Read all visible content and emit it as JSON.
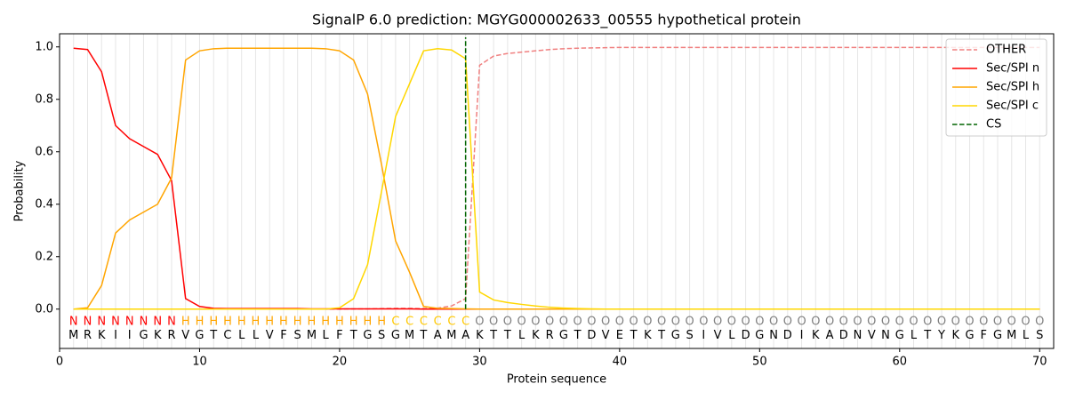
{
  "chart_data": {
    "type": "line",
    "title": "SignalP 6.0 prediction: MGYG000002633_00555 hypothetical protein",
    "xlabel": "Protein sequence",
    "ylabel": "Probability",
    "x": [
      1,
      2,
      3,
      4,
      5,
      6,
      7,
      8,
      9,
      10,
      11,
      12,
      13,
      14,
      15,
      16,
      17,
      18,
      19,
      20,
      21,
      22,
      23,
      24,
      25,
      26,
      27,
      28,
      29,
      30,
      31,
      32,
      33,
      34,
      35,
      36,
      37,
      38,
      39,
      40,
      41,
      42,
      43,
      44,
      45,
      46,
      47,
      48,
      49,
      50,
      51,
      52,
      53,
      54,
      55,
      56,
      57,
      58,
      59,
      60,
      61,
      62,
      63,
      64,
      65,
      66,
      67,
      68,
      69,
      70
    ],
    "sequence": [
      "M",
      "R",
      "K",
      "I",
      "I",
      "G",
      "K",
      "R",
      "V",
      "G",
      "T",
      "C",
      "L",
      "L",
      "V",
      "F",
      "S",
      "M",
      "L",
      "F",
      "T",
      "G",
      "S",
      "G",
      "M",
      "T",
      "A",
      "M",
      "A",
      "K",
      "T",
      "T",
      "L",
      "K",
      "R",
      "G",
      "T",
      "D",
      "V",
      "E",
      "T",
      "K",
      "T",
      "G",
      "S",
      "I",
      "V",
      "L",
      "D",
      "G",
      "N",
      "D",
      "I",
      "K",
      "A",
      "D",
      "N",
      "V",
      "N",
      "G",
      "L",
      "T",
      "Y",
      "K",
      "G",
      "F",
      "G",
      "M",
      "L",
      "S"
    ],
    "labels": [
      "N",
      "N",
      "N",
      "N",
      "N",
      "N",
      "N",
      "N",
      "H",
      "H",
      "H",
      "H",
      "H",
      "H",
      "H",
      "H",
      "H",
      "H",
      "H",
      "H",
      "H",
      "H",
      "H",
      "C",
      "C",
      "C",
      "C",
      "C",
      "C",
      "O",
      "O",
      "O",
      "O",
      "O",
      "O",
      "O",
      "O",
      "O",
      "O",
      "O",
      "O",
      "O",
      "O",
      "O",
      "O",
      "O",
      "O",
      "O",
      "O",
      "O",
      "O",
      "O",
      "O",
      "O",
      "O",
      "O",
      "O",
      "O",
      "O",
      "O",
      "O",
      "O",
      "O",
      "O",
      "O",
      "O",
      "O",
      "O",
      "O",
      "O"
    ],
    "label_colors": {
      "N": "#ff0000",
      "H": "#ffa500",
      "C": "#ffc800",
      "O": "#808080"
    },
    "series": [
      {
        "name": "OTHER",
        "color": "#f08080",
        "dash": true,
        "values": [
          0,
          0,
          0,
          0,
          0,
          0,
          0,
          0,
          0,
          0,
          0,
          0,
          0,
          0,
          0,
          0,
          0,
          0,
          0,
          0,
          0.001,
          0.001,
          0.002,
          0.003,
          0.003,
          0.002,
          0.004,
          0.012,
          0.04,
          0.93,
          0.965,
          0.975,
          0.98,
          0.985,
          0.99,
          0.993,
          0.995,
          0.996,
          0.997,
          0.998,
          0.998,
          0.998,
          0.998,
          0.998,
          0.998,
          0.998,
          0.998,
          0.998,
          0.998,
          0.998,
          0.998,
          0.998,
          0.998,
          0.998,
          0.998,
          0.998,
          0.998,
          0.998,
          0.998,
          0.998,
          0.998,
          0.998,
          0.998,
          0.998,
          0.998,
          0.998,
          0.998,
          0.998,
          0.998,
          0.998
        ]
      },
      {
        "name": "Sec/SPI n",
        "color": "#ff0000",
        "dash": false,
        "values": [
          0.995,
          0.99,
          0.905,
          0.7,
          0.65,
          0.62,
          0.59,
          0.49,
          0.04,
          0.01,
          0.003,
          0.002,
          0.002,
          0.002,
          0.002,
          0.002,
          0.002,
          0.001,
          0.001,
          0.001,
          0.001,
          0.001,
          0.001,
          0.001,
          0.001,
          0,
          0,
          0,
          0,
          0,
          0,
          0,
          0,
          0,
          0,
          0,
          0,
          0,
          0,
          0,
          0,
          0,
          0,
          0,
          0,
          0,
          0,
          0,
          0,
          0,
          0,
          0,
          0,
          0,
          0,
          0,
          0,
          0,
          0,
          0,
          0,
          0,
          0,
          0,
          0,
          0,
          0,
          0,
          0,
          0
        ]
      },
      {
        "name": "Sec/SPI h",
        "color": "#ffa500",
        "dash": false,
        "values": [
          0,
          0.005,
          0.09,
          0.29,
          0.34,
          0.37,
          0.4,
          0.5,
          0.95,
          0.985,
          0.993,
          0.995,
          0.995,
          0.995,
          0.995,
          0.995,
          0.995,
          0.995,
          0.993,
          0.985,
          0.95,
          0.82,
          0.55,
          0.26,
          0.14,
          0.01,
          0.003,
          0.002,
          0.001,
          0,
          0,
          0,
          0,
          0,
          0,
          0,
          0,
          0,
          0,
          0,
          0,
          0,
          0,
          0,
          0,
          0,
          0,
          0,
          0,
          0,
          0,
          0,
          0,
          0,
          0,
          0,
          0,
          0,
          0,
          0,
          0,
          0,
          0,
          0,
          0,
          0,
          0,
          0,
          0,
          0
        ]
      },
      {
        "name": "Sec/SPI c",
        "color": "#ffd700",
        "dash": false,
        "values": [
          0,
          0,
          0,
          0,
          0,
          0,
          0,
          0,
          0,
          0,
          0,
          0,
          0,
          0,
          0,
          0,
          0,
          0,
          0,
          0.005,
          0.04,
          0.17,
          0.45,
          0.735,
          0.86,
          0.985,
          0.993,
          0.988,
          0.955,
          0.065,
          0.035,
          0.025,
          0.018,
          0.012,
          0.007,
          0.004,
          0.002,
          0.001,
          0,
          0,
          0,
          0,
          0,
          0,
          0,
          0,
          0,
          0,
          0,
          0,
          0,
          0,
          0,
          0,
          0,
          0,
          0,
          0,
          0,
          0,
          0,
          0,
          0,
          0,
          0,
          0,
          0,
          0,
          0,
          0
        ]
      }
    ],
    "cs": {
      "name": "CS",
      "color": "#006400",
      "x": 29
    },
    "xlim": [
      0,
      71
    ],
    "ylim": [
      -0.15,
      1.05
    ],
    "xticks": [
      0,
      10,
      20,
      30,
      40,
      50,
      60,
      70
    ],
    "yticks": [
      {
        "value": 0,
        "label": "0.0"
      },
      {
        "value": 0.2,
        "label": "0.2"
      },
      {
        "value": 0.4,
        "label": "0.4"
      },
      {
        "value": 0.6,
        "label": "0.6"
      },
      {
        "value": 0.8,
        "label": "0.8"
      },
      {
        "value": 1.0,
        "label": "1.0"
      }
    ],
    "grid": true,
    "legend": "upper right"
  }
}
